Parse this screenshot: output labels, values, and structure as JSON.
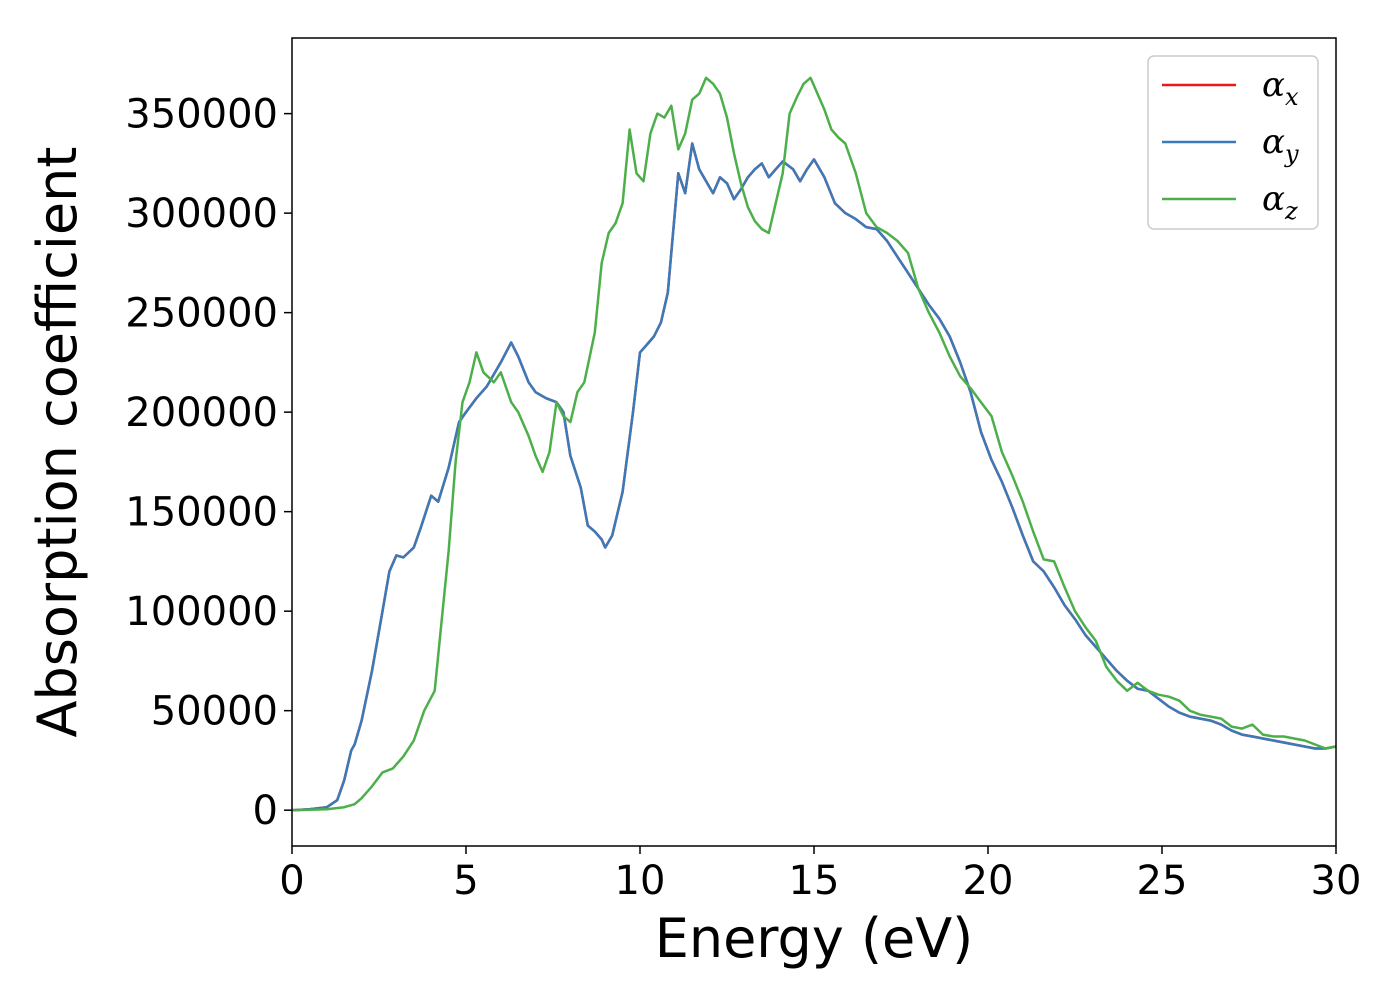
{
  "chart_data": {
    "type": "line",
    "title": "",
    "xlabel": "Energy (eV)",
    "ylabel": "Absorption coefficient",
    "xlim": [
      0,
      30
    ],
    "ylim": [
      -18000,
      388000
    ],
    "xticks": [
      0,
      5,
      10,
      15,
      20,
      25,
      30
    ],
    "yticks": [
      0,
      50000,
      100000,
      150000,
      200000,
      250000,
      300000,
      350000
    ],
    "grid": false,
    "legend_position": "top-right",
    "series": [
      {
        "name": "α_x",
        "symbol": "α",
        "sub": "x",
        "color": "#e41a1c",
        "x": [
          0,
          0.5,
          1.0,
          1.3,
          1.5,
          1.7,
          1.8,
          2.0,
          2.3,
          2.6,
          2.8,
          3.0,
          3.2,
          3.5,
          3.7,
          4.0,
          4.2,
          4.5,
          4.8,
          5.0,
          5.3,
          5.6,
          6.0,
          6.3,
          6.5,
          6.8,
          7.0,
          7.3,
          7.6,
          7.8,
          8.0,
          8.3,
          8.5,
          8.7,
          8.9,
          9.0,
          9.2,
          9.5,
          9.8,
          10.0,
          10.2,
          10.4,
          10.6,
          10.8,
          11.0,
          11.1,
          11.3,
          11.5,
          11.7,
          11.9,
          12.1,
          12.3,
          12.5,
          12.7,
          12.9,
          13.1,
          13.3,
          13.5,
          13.7,
          13.9,
          14.1,
          14.4,
          14.6,
          14.8,
          15.0,
          15.3,
          15.6,
          15.9,
          16.2,
          16.5,
          16.8,
          17.1,
          17.4,
          17.7,
          18.0,
          18.3,
          18.6,
          18.9,
          19.2,
          19.5,
          19.8,
          20.1,
          20.4,
          20.7,
          21.0,
          21.3,
          21.6,
          21.9,
          22.2,
          22.5,
          22.8,
          23.1,
          23.4,
          23.7,
          24.0,
          24.3,
          24.6,
          24.9,
          25.2,
          25.5,
          25.8,
          26.1,
          26.4,
          26.7,
          27.0,
          27.3,
          27.6,
          27.9,
          28.2,
          28.5,
          28.8,
          29.1,
          29.4,
          29.7,
          30.0
        ],
        "y": [
          0,
          500,
          1500,
          5000,
          15000,
          30000,
          33000,
          45000,
          70000,
          100000,
          120000,
          128000,
          127000,
          132000,
          142000,
          158000,
          155000,
          172000,
          195000,
          200000,
          207000,
          213000,
          225000,
          235000,
          228000,
          215000,
          210000,
          207000,
          205000,
          200000,
          178000,
          162000,
          143000,
          140000,
          136000,
          132000,
          138000,
          160000,
          200000,
          230000,
          234000,
          238000,
          245000,
          260000,
          300000,
          320000,
          310000,
          335000,
          322000,
          316000,
          310000,
          318000,
          315000,
          307000,
          312000,
          318000,
          322000,
          325000,
          318000,
          322000,
          326000,
          322000,
          316000,
          322000,
          327000,
          318000,
          305000,
          300000,
          297000,
          293000,
          292000,
          286000,
          278000,
          270000,
          262000,
          254000,
          247000,
          238000,
          225000,
          210000,
          190000,
          176000,
          165000,
          152000,
          138000,
          125000,
          120000,
          112000,
          103000,
          96000,
          88000,
          82000,
          76000,
          70000,
          65000,
          61000,
          60000,
          56000,
          52000,
          49000,
          47000,
          46000,
          45000,
          43000,
          40000,
          38000,
          37000,
          36000,
          35000,
          34000,
          33000,
          32000,
          31000,
          31000,
          32000
        ]
      },
      {
        "name": "α_y",
        "symbol": "α",
        "sub": "y",
        "color": "#3a7ab9",
        "x": [
          0,
          0.5,
          1.0,
          1.3,
          1.5,
          1.7,
          1.8,
          2.0,
          2.3,
          2.6,
          2.8,
          3.0,
          3.2,
          3.5,
          3.7,
          4.0,
          4.2,
          4.5,
          4.8,
          5.0,
          5.3,
          5.6,
          6.0,
          6.3,
          6.5,
          6.8,
          7.0,
          7.3,
          7.6,
          7.8,
          8.0,
          8.3,
          8.5,
          8.7,
          8.9,
          9.0,
          9.2,
          9.5,
          9.8,
          10.0,
          10.2,
          10.4,
          10.6,
          10.8,
          11.0,
          11.1,
          11.3,
          11.5,
          11.7,
          11.9,
          12.1,
          12.3,
          12.5,
          12.7,
          12.9,
          13.1,
          13.3,
          13.5,
          13.7,
          13.9,
          14.1,
          14.4,
          14.6,
          14.8,
          15.0,
          15.3,
          15.6,
          15.9,
          16.2,
          16.5,
          16.8,
          17.1,
          17.4,
          17.7,
          18.0,
          18.3,
          18.6,
          18.9,
          19.2,
          19.5,
          19.8,
          20.1,
          20.4,
          20.7,
          21.0,
          21.3,
          21.6,
          21.9,
          22.2,
          22.5,
          22.8,
          23.1,
          23.4,
          23.7,
          24.0,
          24.3,
          24.6,
          24.9,
          25.2,
          25.5,
          25.8,
          26.1,
          26.4,
          26.7,
          27.0,
          27.3,
          27.6,
          27.9,
          28.2,
          28.5,
          28.8,
          29.1,
          29.4,
          29.7,
          30.0
        ],
        "y": [
          0,
          500,
          1500,
          5000,
          15000,
          30000,
          33000,
          45000,
          70000,
          100000,
          120000,
          128000,
          127000,
          132000,
          142000,
          158000,
          155000,
          172000,
          195000,
          200000,
          207000,
          213000,
          225000,
          235000,
          228000,
          215000,
          210000,
          207000,
          205000,
          200000,
          178000,
          162000,
          143000,
          140000,
          136000,
          132000,
          138000,
          160000,
          200000,
          230000,
          234000,
          238000,
          245000,
          260000,
          300000,
          320000,
          310000,
          335000,
          322000,
          316000,
          310000,
          318000,
          315000,
          307000,
          312000,
          318000,
          322000,
          325000,
          318000,
          322000,
          326000,
          322000,
          316000,
          322000,
          327000,
          318000,
          305000,
          300000,
          297000,
          293000,
          292000,
          286000,
          278000,
          270000,
          262000,
          254000,
          247000,
          238000,
          225000,
          210000,
          190000,
          176000,
          165000,
          152000,
          138000,
          125000,
          120000,
          112000,
          103000,
          96000,
          88000,
          82000,
          76000,
          70000,
          65000,
          61000,
          60000,
          56000,
          52000,
          49000,
          47000,
          46000,
          45000,
          43000,
          40000,
          38000,
          37000,
          36000,
          35000,
          34000,
          33000,
          32000,
          31000,
          31000,
          32000
        ]
      },
      {
        "name": "α_z",
        "symbol": "α",
        "sub": "z",
        "color": "#4daf4a",
        "x": [
          0,
          0.5,
          1.0,
          1.5,
          1.8,
          2.0,
          2.3,
          2.6,
          2.9,
          3.2,
          3.5,
          3.8,
          4.1,
          4.3,
          4.5,
          4.7,
          4.9,
          5.1,
          5.3,
          5.5,
          5.8,
          6.0,
          6.3,
          6.5,
          6.8,
          7.0,
          7.2,
          7.4,
          7.6,
          7.8,
          8.0,
          8.2,
          8.4,
          8.7,
          8.9,
          9.1,
          9.3,
          9.5,
          9.7,
          9.9,
          10.1,
          10.3,
          10.5,
          10.7,
          10.9,
          11.1,
          11.3,
          11.5,
          11.7,
          11.9,
          12.1,
          12.3,
          12.5,
          12.7,
          12.9,
          13.1,
          13.3,
          13.5,
          13.7,
          13.9,
          14.1,
          14.3,
          14.5,
          14.7,
          14.9,
          15.1,
          15.3,
          15.5,
          15.7,
          15.9,
          16.2,
          16.5,
          16.8,
          17.1,
          17.4,
          17.7,
          18.0,
          18.3,
          18.6,
          18.9,
          19.2,
          19.5,
          19.8,
          20.1,
          20.4,
          20.7,
          21.0,
          21.3,
          21.6,
          21.9,
          22.2,
          22.5,
          22.8,
          23.1,
          23.4,
          23.7,
          24.0,
          24.3,
          24.6,
          24.9,
          25.2,
          25.5,
          25.8,
          26.1,
          26.4,
          26.7,
          27.0,
          27.3,
          27.6,
          27.9,
          28.2,
          28.5,
          28.8,
          29.1,
          29.4,
          29.7,
          30.0
        ],
        "y": [
          0,
          200,
          500,
          1500,
          3000,
          6000,
          12000,
          19000,
          21000,
          27000,
          35000,
          50000,
          60000,
          95000,
          130000,
          175000,
          205000,
          215000,
          230000,
          220000,
          215000,
          220000,
          205000,
          200000,
          188000,
          178000,
          170000,
          180000,
          205000,
          198000,
          195000,
          210000,
          215000,
          240000,
          275000,
          290000,
          295000,
          305000,
          342000,
          320000,
          316000,
          340000,
          350000,
          348000,
          354000,
          332000,
          340000,
          357000,
          360000,
          368000,
          365000,
          360000,
          348000,
          330000,
          315000,
          303000,
          296000,
          292000,
          290000,
          305000,
          320000,
          350000,
          358000,
          365000,
          368000,
          360000,
          352000,
          342000,
          338000,
          335000,
          320000,
          300000,
          293000,
          290000,
          286000,
          280000,
          262000,
          250000,
          240000,
          228000,
          218000,
          212000,
          205000,
          198000,
          180000,
          168000,
          155000,
          140000,
          126000,
          125000,
          112000,
          100000,
          92000,
          85000,
          72000,
          65000,
          60000,
          64000,
          60000,
          58000,
          57000,
          55000,
          50000,
          48000,
          47000,
          46000,
          42000,
          41000,
          43000,
          38000,
          37000,
          37000,
          36000,
          35000,
          33000,
          31000,
          32000
        ]
      }
    ]
  }
}
